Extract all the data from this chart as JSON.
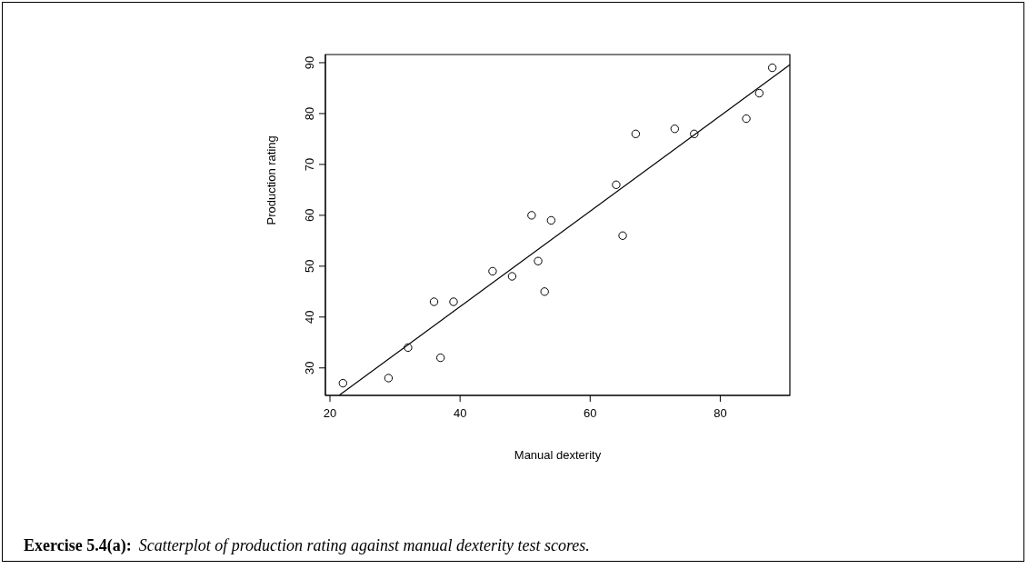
{
  "chart_data": {
    "type": "scatter",
    "xlabel": "Manual dexterity",
    "ylabel": "Production rating",
    "xlim": [
      19.3,
      90.7
    ],
    "ylim": [
      24.6,
      91.6
    ],
    "xticks": [
      20,
      40,
      60,
      80
    ],
    "yticks": [
      30,
      40,
      50,
      60,
      70,
      80,
      90
    ],
    "series": [
      {
        "color": "#000000",
        "marker": "circle",
        "x": [
          22,
          29,
          32,
          36,
          37,
          39,
          45,
          48,
          51,
          52,
          53,
          54,
          64,
          65,
          67,
          73,
          76,
          84,
          86,
          88
        ],
        "values": [
          27,
          28,
          34,
          43,
          32,
          43,
          49,
          48,
          60,
          51,
          45,
          59,
          66,
          56,
          76,
          77,
          76,
          79,
          84,
          89
        ]
      },
      {
        "type": "line",
        "color": "#000000",
        "marker": "none",
        "x": [
          21.4,
          90.7
        ],
        "values": [
          24.6,
          89.6
        ]
      }
    ],
    "annotations": [
      "Exercise 5.4(a):",
      "Scatterplot of production rating against manual dexterity test scores."
    ]
  }
}
